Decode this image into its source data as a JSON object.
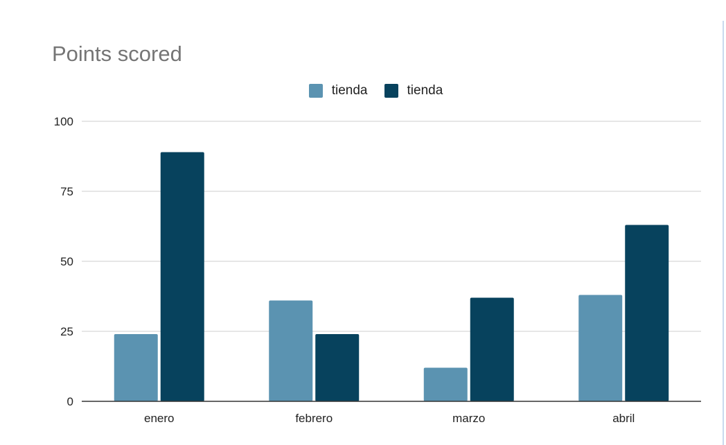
{
  "colors": {
    "series_1": "#5b93b1",
    "series_2": "#07425d",
    "gridline": "#cccccc",
    "axis": "#333333",
    "title": "#757575"
  },
  "chart_data": {
    "type": "bar",
    "title": "Points scored",
    "xlabel": "",
    "ylabel": "",
    "categories": [
      "enero",
      "febrero",
      "marzo",
      "abril"
    ],
    "series": [
      {
        "name": "tienda",
        "values": [
          24,
          36,
          12,
          38
        ]
      },
      {
        "name": "tienda",
        "values": [
          89,
          24,
          37,
          63
        ]
      }
    ],
    "ylim": [
      0,
      100
    ],
    "yticks": [
      "0",
      "25",
      "50",
      "75",
      "100"
    ],
    "grid": true,
    "legend_position": "top"
  }
}
